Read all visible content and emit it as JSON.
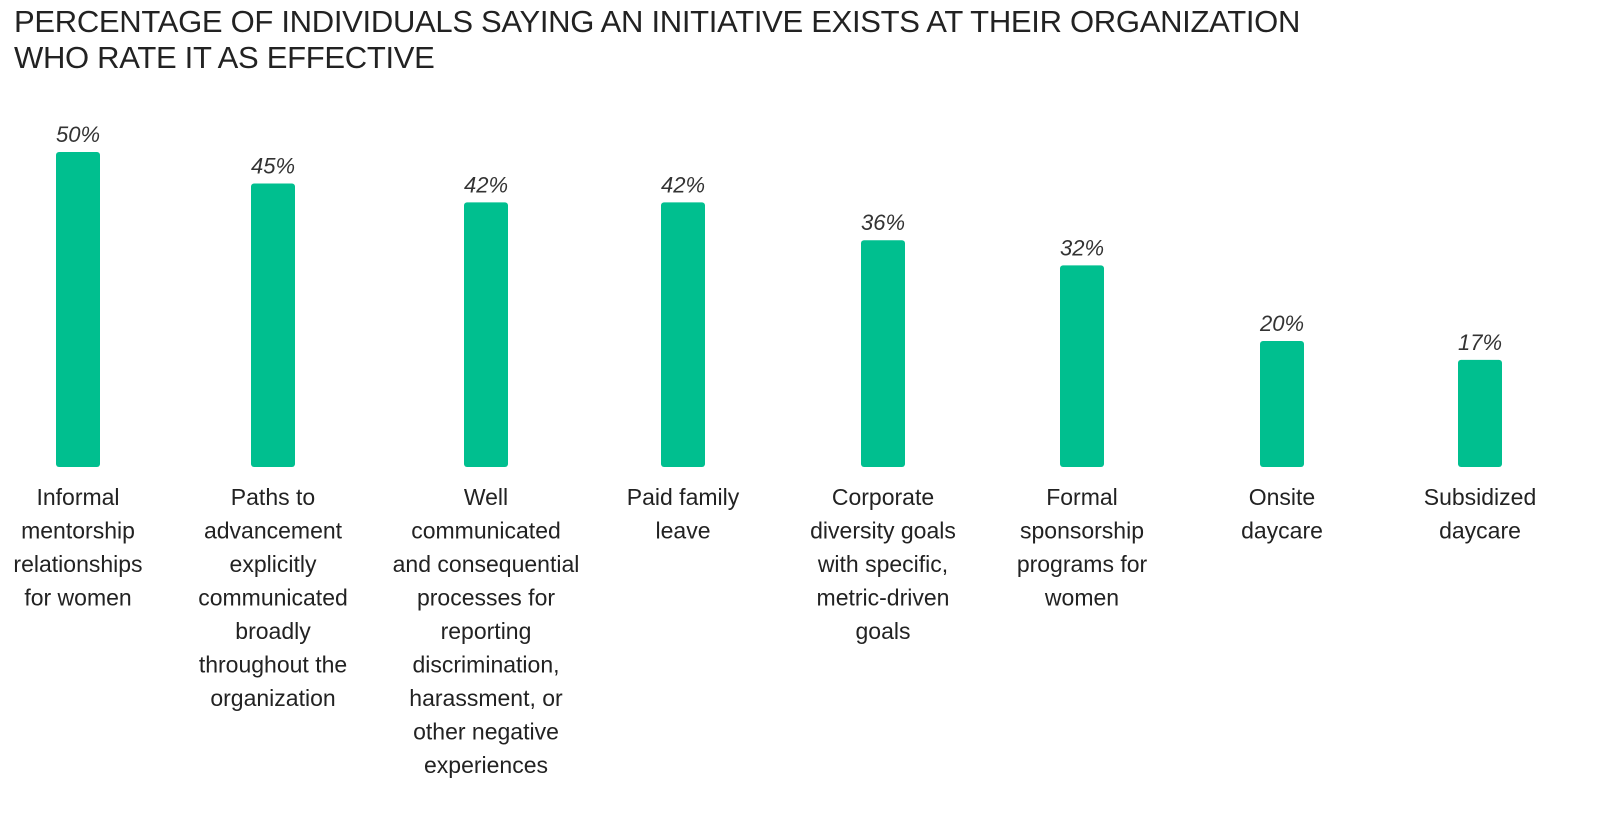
{
  "title_lines": [
    "PERCENTAGE OF INDIVIDUALS SAYING AN INITIATIVE EXISTS AT THEIR ORGANIZATION",
    "WHO RATE IT AS EFFECTIVE"
  ],
  "colors": {
    "bar": "#00bf8f",
    "text": "#222222"
  },
  "chart_data": {
    "type": "bar",
    "title": "PERCENTAGE OF INDIVIDUALS SAYING AN INITIATIVE EXISTS AT THEIR ORGANIZATION WHO RATE IT AS EFFECTIVE",
    "xlabel": "",
    "ylabel": "",
    "ylim": [
      0,
      50
    ],
    "grid": false,
    "legend": "none",
    "unit_suffix": "%",
    "categories": [
      [
        "Informal",
        "mentorship",
        "relationships",
        "for women"
      ],
      [
        "Paths to",
        "advancement",
        "explicitly",
        "communicated",
        "broadly",
        "throughout the",
        "organization"
      ],
      [
        "Well",
        "communicated",
        "and consequential",
        "processes for",
        "reporting",
        "discrimination,",
        "harassment, or",
        "other negative",
        "experiences"
      ],
      [
        "Paid family",
        "leave"
      ],
      [
        "Corporate",
        "diversity goals",
        "with specific,",
        "metric-driven",
        "goals"
      ],
      [
        "Formal",
        "sponsorship",
        "programs for",
        "women"
      ],
      [
        "Onsite",
        "daycare"
      ],
      [
        "Subsidized",
        "daycare"
      ]
    ],
    "values": [
      50,
      45,
      42,
      42,
      36,
      32,
      20,
      17
    ],
    "value_labels": [
      "50%",
      "45%",
      "42%",
      "42%",
      "36%",
      "32%",
      "20%",
      "17%"
    ]
  }
}
